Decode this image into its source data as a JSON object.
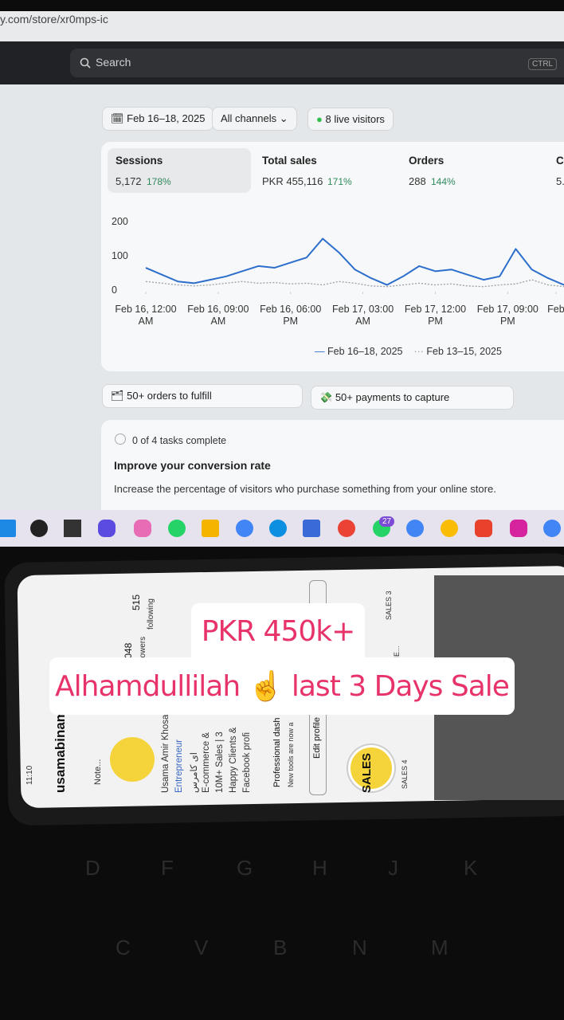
{
  "browser": {
    "url": "y.com/store/xr0mps-ic",
    "search": "Search",
    "shortcut": "CTRL"
  },
  "filters": {
    "date": "Feb 16–18, 2025",
    "channels": "All channels",
    "visitors": "8 live visitors"
  },
  "metrics": [
    {
      "label": "Sessions",
      "value": "5,172",
      "change": "178%"
    },
    {
      "label": "Total sales",
      "value": "PKR 455,116",
      "change": "171%"
    },
    {
      "label": "Orders",
      "value": "288",
      "change": "144%"
    },
    {
      "label": "C",
      "value": "5."
    }
  ],
  "chart_data": {
    "type": "line",
    "x": [
      0,
      2,
      4,
      6,
      8,
      10,
      12,
      14,
      16,
      18,
      20,
      22,
      24,
      26,
      28,
      30,
      32,
      34,
      36,
      38,
      40,
      42,
      44,
      46,
      48,
      50,
      52
    ],
    "xlim": [
      0,
      52
    ],
    "xticks": [
      {
        "value": 0,
        "label": "Feb 16, 12:00 AM"
      },
      {
        "value": 9,
        "label": "Feb 16, 09:00 AM"
      },
      {
        "value": 18,
        "label": "Feb 16, 06:00 PM"
      },
      {
        "value": 27,
        "label": "Feb 17, 03:00 AM"
      },
      {
        "value": 36,
        "label": "Feb 17, 12:00 PM"
      },
      {
        "value": 45,
        "label": "Feb 17, 09:00 PM"
      },
      {
        "value": 51,
        "label": "Feb"
      }
    ],
    "ylim": [
      0,
      200
    ],
    "yticks": [
      0,
      100,
      200
    ],
    "series": [
      {
        "name": "Feb 16–18, 2025",
        "color": "#2c6ecb",
        "values": [
          65,
          45,
          25,
          20,
          30,
          40,
          55,
          70,
          65,
          80,
          95,
          150,
          110,
          60,
          35,
          15,
          40,
          70,
          55,
          60,
          45,
          30,
          40,
          120,
          60,
          35,
          15
        ]
      },
      {
        "name": "Feb 13–15, 2025",
        "color": "#9aa0a6",
        "values": [
          25,
          20,
          15,
          12,
          15,
          20,
          25,
          20,
          22,
          18,
          20,
          15,
          25,
          20,
          12,
          10,
          15,
          20,
          15,
          18,
          12,
          10,
          15,
          18,
          30,
          15,
          10
        ]
      }
    ]
  },
  "actions": {
    "orders": "50+ orders to fulfill",
    "payments": "50+ payments to capture"
  },
  "tasks": {
    "progress": "0 of 4 tasks complete",
    "title": "Improve your conversion rate",
    "description": "Increase the percentage of visitors who purchase something from your online store."
  },
  "taskbar": {
    "badge": "27"
  },
  "phone": {
    "time": "11:10",
    "username": "usamabinam",
    "note": "Note...",
    "following_count": "515",
    "following": "following",
    "followers_count": ".048",
    "followers": "llowers",
    "bio": [
      "Usama Amir Khosa",
      "Entrepreneur",
      "ای کامرس",
      "E-commerce &",
      "10M+ Sales | 3",
      "Happy Clients &",
      "Facebook profi"
    ],
    "dashboard": "Professional dash",
    "dashboard_sub": "New tools are now a",
    "edit": "Edit profile",
    "highlight_badge": "SALES",
    "highlights": [
      "SALES 4",
      "SALES 3",
      "REVIE..."
    ]
  },
  "keyboard": {
    "row1": [
      "D",
      "F",
      "G",
      "H",
      "J",
      "K"
    ],
    "row2": [
      "C",
      "V",
      "B",
      "N",
      "M"
    ]
  },
  "overlay": {
    "line1": "PKR 450k+",
    "line2": "Alhamdullilah ☝️ last 3 Days Sale"
  }
}
